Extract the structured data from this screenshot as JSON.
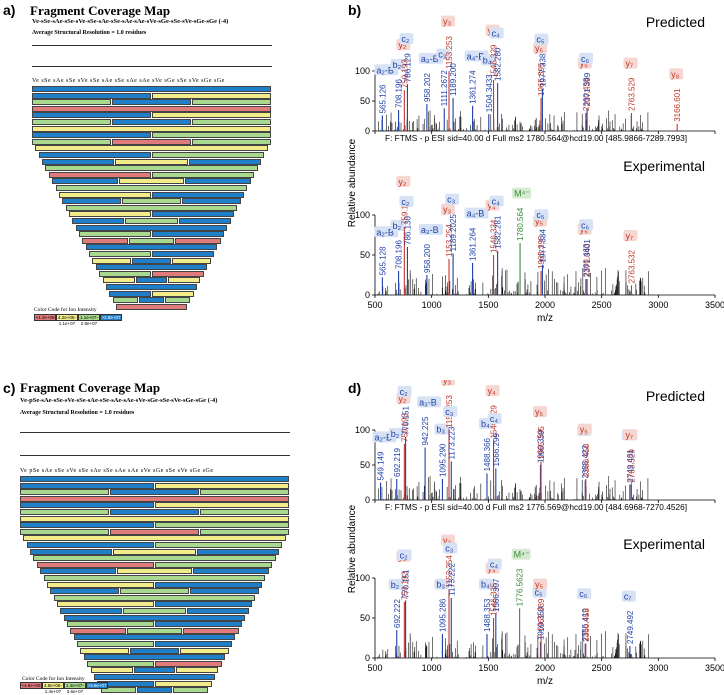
{
  "panels": {
    "a": {
      "label": "a)",
      "title": "Fragment Coverage Map",
      "sequence": "Ve-sSe-sAe-sSe-sVe-sSe-sAe-sSe-sAe-sAe-sVe-sGe-sSe-sVe-sGe-sGe (-4)",
      "resolution": "Average Structural Resolution = 1.0 residues",
      "seq_line": "Ve sSe sAe sSe sVe sSe sAe sSe sAe sAe sVe sGe sSe sVe sGe sGe",
      "color_code_title": "Color Code for Ion Intensity",
      "legend": [
        "<4.2e+06",
        "4.2e+06-1.1e+07",
        "1.1e+07-2.8e+07",
        ">2.8e+07"
      ],
      "legend_colors": [
        "#e07b7b",
        "#f2ec8a",
        "#a9d98e",
        "#1f7fc8"
      ]
    },
    "c": {
      "label": "c)",
      "title": "Fragment Coverage Map",
      "sequence": "Ve-pSe-sAe-sSe-sVe-sSe-sAe-sSe-sAe-sAe-sVe-sGe-sSe-sVe-sGe-sGe (-4)",
      "resolution": "Average Structural Resolution = 1.0 residues",
      "seq_line": "Ve pSe sAe sSe sVe sSe sAe sSe sAe sAe sVe sGe sSe sVe sGe sGe",
      "color_code_title": "Color Code for Ion Intensity",
      "legend": [
        "<4.8e+06",
        "4.8e+06-1.4e+07",
        "1.4e+07-3.6e+07",
        ">3.6e+07"
      ],
      "legend_colors": [
        "#e07b7b",
        "#f2ec8a",
        "#a9d98e",
        "#1f7fc8"
      ]
    },
    "b": {
      "label": "b)",
      "predicted_title": "Predicted",
      "experimental_title": "Experimental",
      "scan_header": "F: FTMS - p ESI sid=40.00 d Full ms2 1780.564@hcd19.00 [485.9866-7289.7993]",
      "ylabel": "Relative abundance",
      "xlabel": "m/z",
      "x_ticks": [
        "500",
        "1000",
        "1500",
        "2000",
        "2500",
        "3000",
        "3500"
      ],
      "y_ticks": [
        "0",
        "50",
        "100"
      ],
      "predicted_peaks": [
        {
          "mz": "565.126",
          "ion": "a₂-B",
          "x": 565,
          "h": 26,
          "c": "blue"
        },
        {
          "mz": "708.196",
          "ion": "b₂",
          "x": 708,
          "h": 35,
          "c": "blue"
        },
        {
          "mz": "759.193",
          "ion": "y₂",
          "x": 759,
          "h": 68,
          "c": "red"
        },
        {
          "mz": "786.129",
          "ion": "c₂",
          "x": 786,
          "h": 78,
          "c": "blue"
        },
        {
          "mz": "958.202",
          "ion": "a₃-B",
          "x": 958,
          "h": 45,
          "c": "blue"
        },
        {
          "mz": "1111.2672",
          "ion": "c₃",
          "x": 1111,
          "h": 38,
          "c": "blue"
        },
        {
          "mz": "1153.253",
          "ion": "y₃",
          "x": 1153,
          "h": 100,
          "c": "red"
        },
        {
          "mz": "1189.200",
          "ion": "",
          "x": 1189,
          "h": 55,
          "c": "blue"
        },
        {
          "mz": "1361.274",
          "ion": "a₄-B",
          "x": 1361,
          "h": 42,
          "c": "blue"
        },
        {
          "mz": "1504.3433",
          "ion": "b₄",
          "x": 1504,
          "h": 28,
          "c": "blue"
        },
        {
          "mz": "1546.329",
          "ion": "y₄",
          "x": 1546,
          "h": 85,
          "c": "red"
        },
        {
          "mz": "1582.280",
          "ion": "c₄",
          "x": 1582,
          "h": 80,
          "c": "blue"
        },
        {
          "mz": "1965.395",
          "ion": "y₅",
          "x": 1965,
          "h": 55,
          "c": "red"
        },
        {
          "mz": "1977.338",
          "ion": "c₅",
          "x": 1977,
          "h": 70,
          "c": "blue"
        },
        {
          "mz": "2360.458",
          "ion": "y₆",
          "x": 2360,
          "h": 30,
          "c": "red"
        },
        {
          "mz": "2371.399",
          "ion": "c₆",
          "x": 2371,
          "h": 38,
          "c": "blue"
        },
        {
          "mz": "2763.529",
          "ion": "y₇",
          "x": 2763,
          "h": 30,
          "c": "red"
        },
        {
          "mz": "3166.601",
          "ion": "y₈",
          "x": 3166,
          "h": 12,
          "c": "red"
        }
      ],
      "experimental_peaks": [
        {
          "mz": "565.128",
          "ion": "a₂-B",
          "x": 565,
          "h": 22,
          "c": "blue"
        },
        {
          "mz": "708.196",
          "ion": "b₂",
          "x": 708,
          "h": 30,
          "c": "blue"
        },
        {
          "mz": "759.193",
          "ion": "y₂",
          "x": 759,
          "h": 85,
          "c": "red"
        },
        {
          "mz": "786.130",
          "ion": "c₂",
          "x": 786,
          "h": 60,
          "c": "blue"
        },
        {
          "mz": "958.200",
          "ion": "a₃-B",
          "x": 958,
          "h": 25,
          "c": "blue"
        },
        {
          "mz": "1153.254",
          "ion": "y₃",
          "x": 1153,
          "h": 45,
          "c": "red"
        },
        {
          "mz": "1189.2025",
          "ion": "c₃",
          "x": 1189,
          "h": 52,
          "c": "blue"
        },
        {
          "mz": "1361.264",
          "ion": "a₄-B",
          "x": 1361,
          "h": 40,
          "c": "blue"
        },
        {
          "mz": "1546.334",
          "ion": "y₄",
          "x": 1546,
          "h": 50,
          "c": "red"
        },
        {
          "mz": "1582.281",
          "ion": "c₄",
          "x": 1582,
          "h": 55,
          "c": "blue"
        },
        {
          "mz": "1780.564",
          "ion": "M⁴⁻",
          "x": 1780,
          "h": 65,
          "c": "green"
        },
        {
          "mz": "1965.395",
          "ion": "y₅",
          "x": 1965,
          "h": 30,
          "c": "red"
        },
        {
          "mz": "1977.334",
          "ion": "c₅",
          "x": 1977,
          "h": 38,
          "c": "blue"
        },
        {
          "mz": "2360.463",
          "ion": "y₆",
          "x": 2360,
          "h": 20,
          "c": "red"
        },
        {
          "mz": "2371.3401",
          "ion": "c₆",
          "x": 2371,
          "h": 20,
          "c": "blue"
        },
        {
          "mz": "2763.532",
          "ion": "y₇",
          "x": 2763,
          "h": 12,
          "c": "red"
        }
      ]
    },
    "d": {
      "label": "d)",
      "predicted_title": "Predicted",
      "experimental_title": "Experimental",
      "scan_header": "F: FTMS - p ESI sid=40.00 d Full ms2 1776.569@hcd19.00 [484.6968-7270.4526]",
      "ylabel": "Relative abundance",
      "xlabel": "m/z",
      "x_ticks": [
        "500",
        "1000",
        "1500",
        "2000",
        "2500",
        "3000",
        "3500"
      ],
      "y_ticks": [
        "0",
        "50",
        "100"
      ],
      "predicted_peaks": [
        {
          "mz": "549.149",
          "ion": "a₂-B",
          "x": 549,
          "h": 25,
          "c": "blue"
        },
        {
          "mz": "692.219",
          "ion": "b₂",
          "x": 692,
          "h": 30,
          "c": "blue"
        },
        {
          "mz": "759.193",
          "ion": "y₂",
          "x": 759,
          "h": 80,
          "c": "red"
        },
        {
          "mz": "770.151",
          "ion": "c₂",
          "x": 770,
          "h": 90,
          "c": "blue"
        },
        {
          "mz": "942.225",
          "ion": "a₃-B",
          "x": 942,
          "h": 75,
          "c": "blue"
        },
        {
          "mz": "1095.290",
          "ion": "b₃",
          "x": 1095,
          "h": 30,
          "c": "blue"
        },
        {
          "mz": "1153.253",
          "ion": "y₃",
          "x": 1153,
          "h": 100,
          "c": "red"
        },
        {
          "mz": "1173.223",
          "ion": "c₃",
          "x": 1173,
          "h": 55,
          "c": "blue"
        },
        {
          "mz": "1488.366",
          "ion": "b₄",
          "x": 1488,
          "h": 38,
          "c": "blue"
        },
        {
          "mz": "1546.329",
          "ion": "y₄",
          "x": 1546,
          "h": 85,
          "c": "red"
        },
        {
          "mz": "1566.299",
          "ion": "c₄",
          "x": 1566,
          "h": 45,
          "c": "blue"
        },
        {
          "mz": "1960.359",
          "ion": "",
          "x": 1960,
          "h": 50,
          "c": "blue"
        },
        {
          "mz": "1965.395",
          "ion": "y₅",
          "x": 1965,
          "h": 55,
          "c": "red"
        },
        {
          "mz": "2355.422",
          "ion": "c₆",
          "x": 2355,
          "h": 28,
          "c": "blue"
        },
        {
          "mz": "2360.458",
          "ion": "y₆",
          "x": 2360,
          "h": 30,
          "c": "red"
        },
        {
          "mz": "2749.481",
          "ion": "c₇",
          "x": 2749,
          "h": 22,
          "c": "blue"
        },
        {
          "mz": "2763.529",
          "ion": "y₇",
          "x": 2763,
          "h": 22,
          "c": "red"
        }
      ],
      "experimental_peaks": [
        {
          "mz": "692.222",
          "ion": "b₂",
          "x": 692,
          "h": 35,
          "c": "blue"
        },
        {
          "mz": "759.193",
          "ion": "y₂",
          "x": 759,
          "h": 70,
          "c": "red"
        },
        {
          "mz": "770.151",
          "ion": "c₂",
          "x": 770,
          "h": 72,
          "c": "blue"
        },
        {
          "mz": "1095.286",
          "ion": "b₃",
          "x": 1095,
          "h": 30,
          "c": "blue"
        },
        {
          "mz": "1153.254",
          "ion": "y₃",
          "x": 1153,
          "h": 85,
          "c": "red"
        },
        {
          "mz": "1173.222",
          "ion": "c₃",
          "x": 1173,
          "h": 75,
          "c": "blue"
        },
        {
          "mz": "1488.353",
          "ion": "b₄",
          "x": 1488,
          "h": 30,
          "c": "blue"
        },
        {
          "mz": "1546.335",
          "ion": "y₄",
          "x": 1546,
          "h": 50,
          "c": "red"
        },
        {
          "mz": "1566.307",
          "ion": "c₄",
          "x": 1566,
          "h": 55,
          "c": "blue"
        },
        {
          "mz": "1776.5623",
          "ion": "M⁴⁻",
          "x": 1776,
          "h": 62,
          "c": "green"
        },
        {
          "mz": "1960.350",
          "ion": "c₅",
          "x": 1960,
          "h": 20,
          "c": "blue"
        },
        {
          "mz": "1965.389",
          "ion": "y₅",
          "x": 1965,
          "h": 30,
          "c": "red"
        },
        {
          "mz": "2355.419",
          "ion": "c₆",
          "x": 2355,
          "h": 18,
          "c": "blue"
        },
        {
          "mz": "2360.458",
          "ion": "",
          "x": 2360,
          "h": 18,
          "c": "red"
        },
        {
          "mz": "2749.492",
          "ion": "c₇",
          "x": 2749,
          "h": 15,
          "c": "blue"
        }
      ]
    }
  },
  "colors": {
    "red": "#c0392b",
    "blue": "#1f3fa8",
    "green": "#3a8a3a",
    "ion_bg_red": "#f6d6d0",
    "ion_bg_blue": "#d7e3f4",
    "ion_bg_green": "#d6ecd2"
  }
}
